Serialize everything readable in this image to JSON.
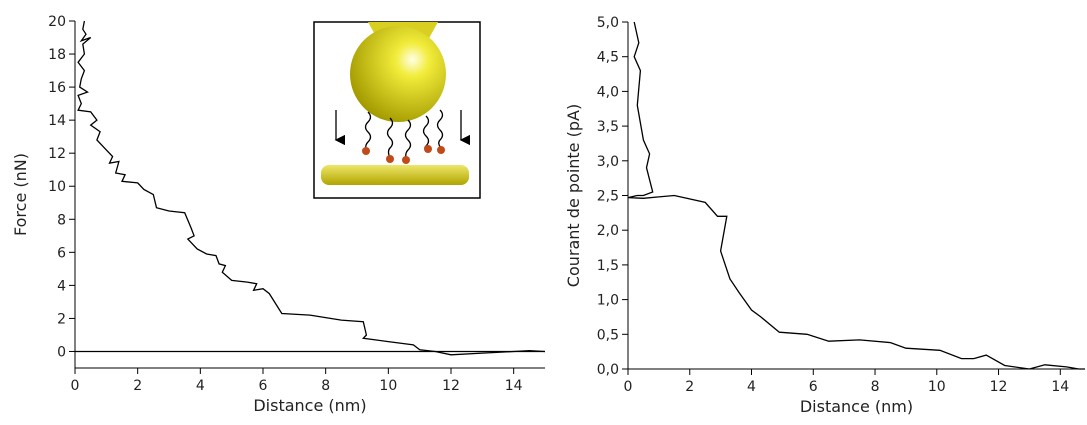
{
  "chart_data": [
    {
      "type": "line",
      "xlabel": "Distance (nm)",
      "ylabel": "Force (nN)",
      "xlim": [
        0,
        15
      ],
      "ylim": [
        -1,
        20
      ],
      "xticks": [
        0,
        2,
        4,
        6,
        8,
        10,
        12,
        14
      ],
      "yticks": [
        0,
        2,
        4,
        6,
        8,
        10,
        12,
        14,
        16,
        18,
        20
      ],
      "reference_line": 0,
      "series": [
        {
          "color": "#000000",
          "x": [
            0.3,
            0.25,
            0.35,
            0.2,
            0.5,
            0.25,
            0.3,
            0.1,
            0.3,
            0.2,
            0.15,
            0.4,
            0.1,
            0.2,
            0.1,
            0.5,
            0.7,
            0.5,
            0.8,
            0.7,
            1.0,
            1.2,
            1.1,
            1.4,
            1.3,
            1.6,
            1.5,
            2.0,
            2.2,
            2.5,
            2.6,
            3.0,
            3.5,
            3.7,
            3.8,
            3.6,
            3.9,
            4.2,
            4.5,
            4.6,
            4.8,
            4.7,
            5.0,
            5.5,
            5.8,
            5.7,
            6.0,
            6.2,
            6.6,
            7.5,
            8.5,
            9.2,
            9.3,
            9.2,
            10.0,
            10.8,
            11.0,
            11.5,
            12.0,
            13.0,
            14.0,
            14.5,
            15.0
          ],
          "values": [
            20,
            19.5,
            19.2,
            18.8,
            19,
            18.6,
            18,
            17.5,
            17,
            16.5,
            16,
            15.7,
            15.5,
            15,
            14.6,
            14.5,
            14,
            13.7,
            13.3,
            12.8,
            12.2,
            11.8,
            11.4,
            11.5,
            10.8,
            10.7,
            10.3,
            10.2,
            9.8,
            9.5,
            8.7,
            8.5,
            8.4,
            7.5,
            7.0,
            6.8,
            6.2,
            5.9,
            5.8,
            5.3,
            5.2,
            4.8,
            4.3,
            4.2,
            4.1,
            3.7,
            3.8,
            3.5,
            2.3,
            2.2,
            1.9,
            1.8,
            1.0,
            0.8,
            0.6,
            0.4,
            0.1,
            0,
            -0.2,
            -0.1,
            0,
            0.05,
            0
          ]
        }
      ]
    },
    {
      "type": "line",
      "xlabel": "Distance (nm)",
      "ylabel": "Courant de pointe (pA)",
      "xlim": [
        0,
        14.8
      ],
      "ylim": [
        0,
        5
      ],
      "xticks": [
        0,
        2,
        4,
        6,
        8,
        10,
        12,
        14
      ],
      "yticks": [
        {
          "value": 0,
          "label": "0,0"
        },
        {
          "value": 0.5,
          "label": "0,5"
        },
        {
          "value": 1,
          "label": "1,0"
        },
        {
          "value": 1.5,
          "label": "1,5"
        },
        {
          "value": 2,
          "label": "2,0"
        },
        {
          "value": 2.5,
          "label": "2,5"
        },
        {
          "value": 3,
          "label": "3,0"
        },
        {
          "value": 3.5,
          "label": "3,5"
        },
        {
          "value": 4,
          "label": "4,0"
        },
        {
          "value": 4.5,
          "label": "4,5"
        },
        {
          "value": 5,
          "label": "5,0"
        }
      ],
      "series": [
        {
          "color": "#000000",
          "x": [
            0.2,
            0.35,
            0.2,
            0.4,
            0.3,
            0.5,
            0.7,
            0.6,
            0.8,
            0.5,
            0.3,
            0,
            0.5,
            1,
            1.5,
            2.5,
            2.9,
            3.2,
            3.0,
            3.3,
            3.6,
            4.0,
            4.3,
            4.9,
            5.8,
            6.5,
            7.5,
            8.5,
            9,
            10.1,
            10.8,
            11.2,
            11.6,
            12.2,
            13.0,
            13.5,
            14.2,
            14.6,
            14.8
          ],
          "values": [
            5.0,
            4.7,
            4.5,
            4.3,
            3.8,
            3.3,
            3.1,
            2.9,
            2.55,
            2.5,
            2.5,
            2.47,
            2.46,
            2.48,
            2.5,
            2.4,
            2.2,
            2.2,
            1.7,
            1.3,
            1.1,
            0.85,
            0.75,
            0.53,
            0.5,
            0.4,
            0.42,
            0.38,
            0.3,
            0.27,
            0.15,
            0.15,
            0.2,
            0.05,
            0,
            0.06,
            0.03,
            0,
            0
          ]
        }
      ]
    }
  ]
}
